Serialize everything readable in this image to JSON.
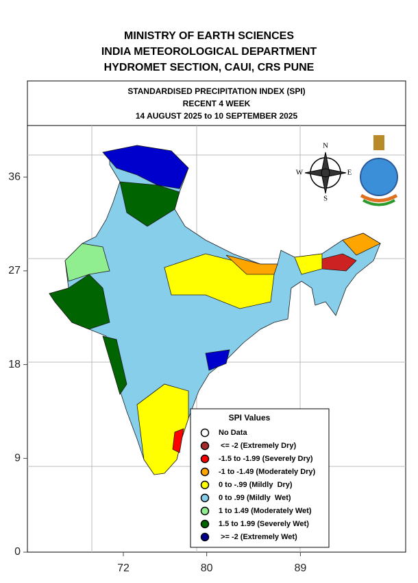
{
  "header": {
    "lines": [
      "MINISTRY OF EARTH SCIENCES",
      "INDIA METEOROLOGICAL DEPARTMENT",
      "HYDROMET SECTION, CAUI, CRS PUNE"
    ]
  },
  "box": {
    "lines": [
      "STANDARDISED PRECIPITATION INDEX (SPI)",
      "RECENT 4 WEEK",
      "14 AUGUST 2025 to 10 SEPTEMBER 2025"
    ]
  },
  "axes": {
    "yticks": [
      36,
      27,
      18,
      9,
      0
    ],
    "xticks": [
      72,
      80,
      89
    ]
  },
  "compass": {
    "n": "N",
    "e": "E",
    "s": "S",
    "w": "W"
  },
  "legend": {
    "title": "SPI Values",
    "items": [
      {
        "label": "No Data",
        "color": "#ffffff"
      },
      {
        "label": " <= -2 (Extremely Dry)",
        "color": "#a52a2a"
      },
      {
        "label": "-1.5 to -1.99 (Severely Dry)",
        "color": "#ff0000"
      },
      {
        "label": "-1 to -1.49 (Moderately Dry)",
        "color": "#ffa500"
      },
      {
        "label": "0 to -.99 (Mildly  Dry)",
        "color": "#ffff00"
      },
      {
        "label": "0 to .99 (Mildly  Wet)",
        "color": "#87ceeb"
      },
      {
        "label": "1 to 1.49 (Moderately Wet)",
        "color": "#90ee90"
      },
      {
        "label": "1.5 to 1.99 (Severely Wet)",
        "color": "#006400"
      },
      {
        "label": " >= -2 (Extremely Wet)",
        "color": "#00008b"
      }
    ]
  }
}
